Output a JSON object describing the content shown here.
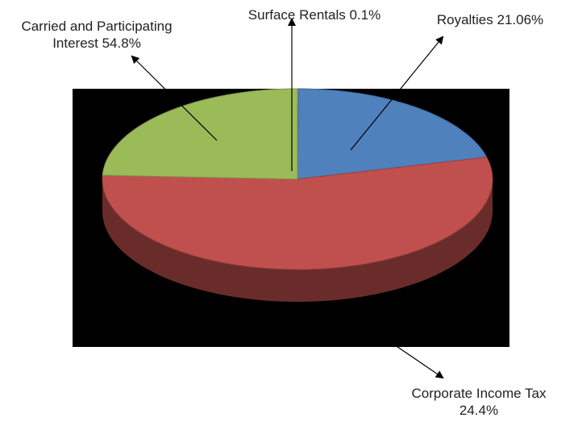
{
  "chart_data": {
    "type": "pie",
    "style": "3d",
    "background": "#000000",
    "categories": [
      "Surface Rentals",
      "Royalties",
      "Carried and Participating Interest",
      "Corporate Income Tax"
    ],
    "values": [
      0.1,
      21.06,
      54.8,
      24.4
    ],
    "colors": [
      "#7f9bc9",
      "#4f81bd",
      "#c0504d",
      "#9bbb59"
    ],
    "labels": [
      {
        "lines": [
          "Surface Rentals 0.1%"
        ]
      },
      {
        "lines": [
          "Royalties 21.06%"
        ]
      },
      {
        "lines": [
          "Carried and Participating",
          "Interest 54.8%"
        ]
      },
      {
        "lines": [
          "Corporate Income Tax",
          "24.4%"
        ]
      }
    ],
    "legend": "none"
  }
}
